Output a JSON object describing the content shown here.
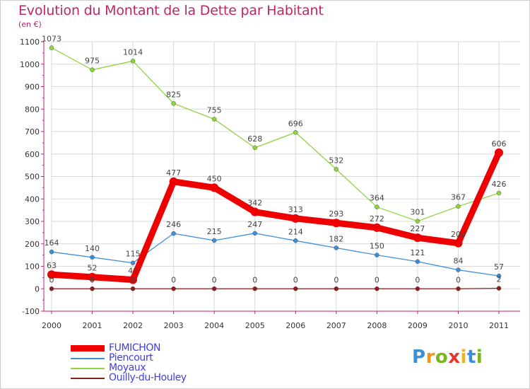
{
  "title": "Evolution du Montant de la Dette par Habitant",
  "subtitle": "(en €)",
  "colors": {
    "title": "#c0246a",
    "axis": "#c0246a",
    "grid": "#d9d9d9",
    "legend_text": "#3f3fe0"
  },
  "logo": {
    "letters": [
      "P",
      "r",
      "o",
      "x",
      "i",
      "t",
      "i"
    ],
    "colors": [
      "#3a8fd8",
      "#f29418",
      "#7ab520",
      "#e8362e",
      "#f2b21c",
      "#3a8fd8",
      "#7ab520"
    ]
  },
  "chart_data": {
    "type": "line",
    "title": "Evolution du Montant de la Dette par Habitant",
    "ylabel": "(en €)",
    "xlabel": "",
    "categories": [
      "2000",
      "2001",
      "2002",
      "2003",
      "2004",
      "2005",
      "2006",
      "2007",
      "2008",
      "2009",
      "2010",
      "2011"
    ],
    "ylim": [
      -100,
      1100
    ],
    "yticks": [
      -100,
      0,
      100,
      200,
      300,
      400,
      500,
      600,
      700,
      800,
      900,
      1000,
      1100
    ],
    "grid": true,
    "legend_position": "bottom-left",
    "series": [
      {
        "name": "FUMICHON",
        "color": "#ee0000",
        "values": [
          63,
          52,
          40,
          477,
          450,
          342,
          313,
          293,
          272,
          227,
          203,
          606
        ],
        "labels": [
          "63",
          "52",
          "40",
          "477",
          "450",
          "342",
          "313",
          "293",
          "272",
          "227",
          "203",
          "606"
        ]
      },
      {
        "name": "Piencourt",
        "color": "#3f8fd8",
        "values": [
          164,
          140,
          115,
          246,
          215,
          247,
          214,
          182,
          150,
          121,
          84,
          57
        ],
        "labels": [
          "164",
          "140",
          "115",
          "246",
          "215",
          "247",
          "214",
          "182",
          "150",
          "121",
          "84",
          "57"
        ]
      },
      {
        "name": "Moyaux",
        "color": "#8fd43f",
        "values": [
          1073,
          975,
          1014,
          825,
          755,
          628,
          696,
          532,
          364,
          301,
          367,
          426
        ],
        "labels": [
          "1073",
          "975",
          "1014",
          "825",
          "755",
          "628",
          "696",
          "532",
          "364",
          "301",
          "367",
          "426"
        ]
      },
      {
        "name": "Ouilly-du-Houley",
        "color": "#8b1e1e",
        "values": [
          0,
          0,
          0,
          0,
          0,
          0,
          0,
          0,
          0,
          0,
          0,
          2
        ],
        "labels": [
          "0",
          "0",
          "0",
          "0",
          "0",
          "0",
          "0",
          "0",
          "0",
          "0",
          "0",
          "2"
        ]
      }
    ]
  }
}
